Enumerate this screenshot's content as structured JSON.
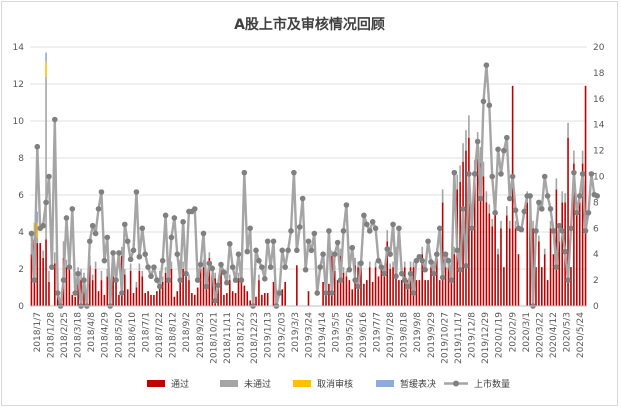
{
  "chart_data": {
    "type": "bar",
    "title": "A股上市及审核情况回顾",
    "y_left_ticks": [
      "0",
      "2",
      "4",
      "6",
      "8",
      "10",
      "12",
      "14"
    ],
    "y_right_ticks": [
      "0",
      "2",
      "4",
      "6",
      "8",
      "10",
      "12",
      "14",
      "16",
      "18",
      "20"
    ],
    "ylim_left": [
      0,
      14
    ],
    "ylim_right": [
      0,
      20
    ],
    "x_tick_labels": [
      "2018/1/7",
      "2018/1/28",
      "2018/2/25",
      "2018/3/18",
      "2018/4/8",
      "2018/4/29",
      "2018/5/20",
      "2018/6/10",
      "2018/7/1",
      "2018/7/22",
      "2018/8/12",
      "2018/9/2",
      "2018/9/23",
      "2018/10/21",
      "2018/11/11",
      "2018/12/2",
      "2018/12/23",
      "2019/1/13",
      "2019/2/03",
      "2019/3/3",
      "2019/3/24",
      "2019/4/14",
      "2019/5/5",
      "2019/5/26",
      "2019/6/16",
      "2019/7/7",
      "2019/7/28",
      "2019/8/18",
      "2019/9/8",
      "2019/9/29",
      "2019/10/27",
      "2019/11/17",
      "2019/12/8",
      "2019/12/29",
      "2020/1/19",
      "2020/2/9",
      "2020/3/1",
      "2020/3/22",
      "2020/4/12",
      "2020/5/3",
      "2020/5/24"
    ],
    "series": [
      {
        "name": "通过",
        "color": "#c00000",
        "axis": "left",
        "values": [
          2.8,
          3.6,
          3.4,
          3.4,
          2.6,
          3.6,
          1.3,
          0,
          2.3,
          1.2,
          0,
          2.6,
          2.1,
          2.3,
          0.6,
          0.5,
          1.5,
          1.4,
          1.4,
          0,
          2.2,
          1.4,
          2,
          0.8,
          1.4,
          0.6,
          1.6,
          0.7,
          1.6,
          1.6,
          0.6,
          2.7,
          1.7,
          0.9,
          1.9,
          0.7,
          1,
          1.9,
          1.6,
          0.7,
          0.8,
          0.6,
          0.6,
          0.8,
          1.5,
          1.3,
          1.8,
          1.6,
          2,
          0.5,
          0.8,
          2.2,
          2,
          1.6,
          1.4,
          0.7,
          0.6,
          1,
          2,
          2.1,
          1,
          2.6,
          1.8,
          1.5,
          1,
          2,
          0.6,
          0.7,
          1.4,
          0.8,
          0.7,
          1.5,
          1.6,
          1.1,
          0.8,
          0.3,
          1.4,
          0.5,
          1.4,
          0.6,
          0.7,
          0.7,
          0,
          1.3,
          0.9,
          0,
          0.9,
          1.3,
          0,
          0,
          0,
          2.2,
          0,
          0,
          0,
          0.8,
          0,
          0,
          0,
          0,
          1.3,
          1.2,
          1.2,
          2.7,
          1.9,
          1.4,
          2.7,
          1.8,
          1.6,
          1.4,
          0.9,
          2.2,
          2.1,
          2.1,
          1.2,
          1.4,
          2.1,
          1.3,
          2.1,
          1.6,
          2.1,
          1.6,
          3.5,
          2,
          2.1,
          2.8,
          1.4,
          1.4,
          2.1,
          1.4,
          2.1,
          2.1,
          1.4,
          1.4,
          2.8,
          1.4,
          1.4,
          2.1,
          2.1,
          2.8,
          1.4,
          5.6,
          2.1,
          2.1,
          1.5,
          2.8,
          6.3,
          6.7,
          7.8,
          8.4,
          9.1,
          4.9,
          7,
          8.4,
          7.7,
          7,
          5.6,
          5,
          4.3,
          5.6,
          2.8,
          4.2,
          2.1,
          4.9,
          4.2,
          11.9,
          4.2,
          2.8,
          0,
          0,
          5.6,
          4.9,
          4.2,
          2.1,
          3.5,
          2.1,
          2.8,
          1.4,
          4.2,
          2.8,
          6.3,
          3.5,
          5.6,
          5.6,
          9.1,
          2.1,
          7.7,
          4.9,
          5.6,
          7.7,
          11.9
        ]
      },
      {
        "name": "未通过",
        "color": "#a5a5a5",
        "axis": "left",
        "values": [
          0.6,
          0.4,
          0.3,
          0,
          0.4,
          8.8,
          0.6,
          0,
          0.6,
          0.5,
          0,
          0.9,
          0.4,
          0.3,
          0,
          0,
          0.6,
          0.6,
          0.4,
          0,
          0.5,
          0.3,
          0.4,
          0,
          0.5,
          0,
          0.4,
          0,
          0.5,
          0.4,
          0,
          0.5,
          0.3,
          0,
          0.4,
          0,
          0.3,
          0.4,
          0.3,
          0,
          0,
          0,
          0,
          0,
          0.4,
          0.3,
          0.3,
          0.4,
          0.4,
          0,
          0,
          0.3,
          0.4,
          0.3,
          0.3,
          0,
          0,
          0,
          0.3,
          0.4,
          0,
          0.3,
          0.4,
          0.3,
          0,
          0.3,
          0,
          0,
          0.3,
          0,
          0,
          0.3,
          0.3,
          0,
          0,
          0,
          0,
          0,
          0.3,
          0,
          0,
          0,
          0,
          0,
          0,
          0,
          0,
          0,
          0,
          0,
          0,
          0,
          0,
          0,
          0,
          0,
          0,
          0,
          0,
          0,
          0,
          0,
          0,
          0.3,
          0.3,
          0,
          0.4,
          0.3,
          0.3,
          0,
          0,
          0.4,
          0.3,
          0.3,
          0,
          0,
          0.3,
          0,
          0.3,
          0,
          0.3,
          0,
          0.6,
          0.3,
          0.3,
          0.4,
          0,
          0,
          0.3,
          0,
          0.3,
          0.3,
          0,
          0,
          0.4,
          0,
          0,
          0.3,
          0.3,
          0.3,
          0,
          0.7,
          0.3,
          0.3,
          0,
          0.4,
          0.8,
          0.9,
          1,
          1.1,
          1.2,
          0.6,
          0.9,
          1,
          0.9,
          0.8,
          0.6,
          0.5,
          0.4,
          0.6,
          0.3,
          0.4,
          0,
          0.5,
          0.4,
          0,
          0.4,
          0,
          0,
          0,
          0.6,
          0.5,
          0.4,
          0,
          0.3,
          0,
          0.3,
          0,
          0.4,
          0,
          0.6,
          0.3,
          0.6,
          0.5,
          0.8,
          0,
          0.7,
          0.4,
          0.5,
          0.7,
          0
        ]
      },
      {
        "name": "取消审核",
        "color": "#ffc000",
        "axis": "left",
        "values": [
          0,
          0.5,
          0.8,
          0,
          0,
          0.8,
          0,
          0,
          0,
          0,
          0,
          0,
          0,
          0,
          0,
          0,
          0,
          0,
          0,
          0,
          0,
          0,
          0,
          0,
          0,
          0,
          0,
          0,
          0,
          0,
          0,
          0,
          0,
          0,
          0,
          0,
          0,
          0,
          0,
          0,
          0,
          0,
          0,
          0,
          0,
          0,
          0,
          0,
          0,
          0,
          0,
          0,
          0,
          0,
          0,
          0,
          0,
          0,
          0,
          0,
          0,
          0,
          0,
          0,
          0,
          0,
          0,
          0,
          0,
          0,
          0,
          0,
          0,
          0,
          0,
          0,
          0,
          0,
          0,
          0,
          0,
          0,
          0,
          0,
          0,
          0,
          0,
          0,
          0,
          0,
          0,
          0,
          0,
          0,
          0,
          0,
          0,
          0,
          0,
          0,
          0,
          0,
          0,
          0,
          0,
          0,
          0,
          0,
          0,
          0,
          0,
          0,
          0,
          0,
          0,
          0,
          0,
          0,
          0,
          0,
          0,
          0,
          0,
          0,
          0,
          0,
          0,
          0,
          0,
          0,
          0,
          0,
          0,
          0,
          0,
          0,
          0,
          0,
          0,
          0,
          0,
          0,
          0,
          0,
          0,
          0,
          0,
          0,
          0,
          0,
          0,
          0,
          0,
          0,
          0,
          0,
          0,
          0,
          0,
          0,
          0,
          0,
          0,
          0,
          0,
          0,
          0,
          0,
          0,
          0,
          0,
          0,
          0,
          0,
          0,
          0,
          0,
          0,
          0,
          0,
          0,
          0,
          0,
          0,
          0,
          0,
          0,
          0,
          0,
          0,
          0
        ]
      },
      {
        "name": "暂缓表决",
        "color": "#8faadc",
        "axis": "left",
        "values": [
          0,
          0,
          0.6,
          0,
          0,
          0.5,
          0,
          0,
          0,
          0,
          0,
          0,
          0,
          0,
          0,
          0,
          0,
          0,
          0,
          0,
          0,
          0,
          0,
          0,
          0,
          0,
          0,
          0,
          0,
          0,
          0,
          0,
          0,
          0,
          0,
          0,
          0,
          0,
          0,
          0,
          0,
          0,
          0,
          0,
          0,
          0,
          0,
          0,
          0,
          0,
          0,
          0,
          0,
          0,
          0,
          0,
          0,
          0,
          0,
          0,
          0,
          0,
          0,
          0,
          0,
          0,
          0,
          0,
          0,
          0,
          0,
          0,
          0,
          0,
          0,
          0,
          0,
          0,
          0,
          0,
          0,
          0,
          0,
          0,
          0,
          0,
          0,
          0,
          0,
          0,
          0,
          0,
          0,
          0,
          0,
          0,
          0,
          0,
          0,
          0,
          0,
          0,
          0,
          0,
          0,
          0,
          0,
          0,
          0,
          0,
          0,
          0,
          0,
          0,
          0,
          0,
          0,
          0,
          0,
          0,
          0,
          0,
          0,
          0,
          0,
          0,
          0,
          0,
          0,
          0,
          0,
          0,
          0,
          0,
          0,
          0,
          0,
          0,
          0,
          0,
          0,
          0,
          0,
          0,
          0,
          0,
          0,
          0,
          0,
          0,
          0,
          0,
          0,
          0,
          0,
          0,
          0,
          0,
          0,
          0,
          0,
          0,
          0,
          0,
          0,
          0,
          0,
          0,
          0,
          0,
          0,
          0,
          0,
          0,
          0,
          0,
          0,
          0,
          0,
          0,
          0,
          0,
          0,
          0,
          0,
          0,
          0,
          0,
          0,
          0,
          0
        ]
      },
      {
        "name": "上市数量",
        "color": "#a5a5a5",
        "axis": "right",
        "type": "line",
        "values": [
          5.6,
          2,
          12.3,
          6,
          6.2,
          8,
          10,
          3,
          14.4,
          1,
          0,
          2,
          6.8,
          3,
          7.5,
          1,
          2.5,
          0,
          2,
          0,
          5,
          6.2,
          5.6,
          7.5,
          8.8,
          3.5,
          5.3,
          0,
          4.1,
          2,
          4.1,
          1,
          6.3,
          5,
          3.6,
          4.3,
          8.8,
          3.8,
          6,
          4,
          3,
          2.3,
          3,
          2,
          1.5,
          3.5,
          7,
          2,
          5.3,
          6.8,
          4,
          2,
          6.5,
          2.5,
          7.3,
          7.3,
          7.5,
          2,
          3.2,
          5.6,
          1.5,
          3.3,
          2.9,
          0.4,
          1.6,
          3.2,
          2.6,
          1.8,
          4.8,
          3,
          2,
          4,
          2,
          10.3,
          4.2,
          6,
          0,
          4.3,
          3.5,
          3,
          2.1,
          5,
          3,
          5,
          0,
          1,
          4.3,
          3,
          4.3,
          5.8,
          10.3,
          4.3,
          6.1,
          8.3,
          2.8,
          5,
          4.3,
          5.6,
          1,
          3,
          4,
          1,
          5.8,
          1,
          4,
          4.9,
          2,
          5.8,
          7.8,
          2.8,
          4.5,
          2,
          1.5,
          3.3,
          7,
          6.3,
          5.8,
          6.5,
          6,
          3.5,
          3,
          2.5,
          4.4,
          4,
          6.3,
          2.3,
          6,
          2.5,
          2,
          1.5,
          2.5,
          1,
          3.5,
          3.8,
          3.5,
          2.8,
          5,
          3.4,
          2.5,
          4,
          6,
          2.2,
          4,
          3.5,
          2,
          10.3,
          4.3,
          2.8,
          7.5,
          3.1,
          10.2,
          6,
          10.2,
          12.7,
          8.3,
          15.8,
          18.6,
          15.5,
          10,
          7.2,
          12.1,
          10.2,
          12,
          13,
          8.3,
          10,
          7.4,
          6,
          5.9,
          7.3,
          8.5,
          8.5,
          0,
          5.8,
          8,
          7.5,
          10,
          8.5,
          7.5,
          5.8,
          3,
          6.2,
          5.8,
          4.2,
          2,
          6,
          10.3,
          7.2,
          8.5,
          10.2,
          5.8,
          7.2,
          10.2,
          8.6,
          8.5
        ]
      }
    ]
  }
}
